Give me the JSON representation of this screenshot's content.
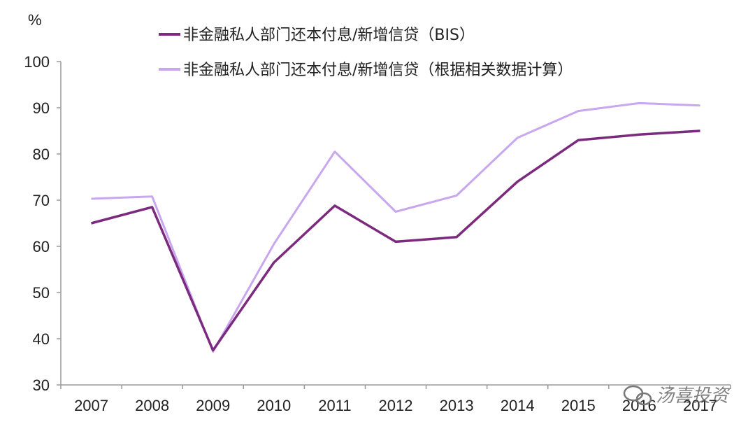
{
  "chart_data": {
    "type": "line",
    "ylabel": "%",
    "ylim": [
      30,
      100
    ],
    "yticks": [
      30,
      40,
      50,
      60,
      70,
      80,
      90,
      100
    ],
    "categories": [
      "2007",
      "2008",
      "2009",
      "2010",
      "2011",
      "2012",
      "2013",
      "2014",
      "2015",
      "2016",
      "2017"
    ],
    "series": [
      {
        "name": "非金融私人部门还本付息/新增信贷（BIS）",
        "color": "#7b2a7e",
        "values": [
          65,
          68.5,
          37.5,
          56.5,
          68.8,
          61,
          62,
          74,
          83,
          84.2,
          85
        ]
      },
      {
        "name": "非金融私人部门还本付息/新增信贷（根据相关数据计算）",
        "color": "#c9a7ee",
        "values": [
          70.3,
          70.8,
          37.2,
          60.5,
          80.5,
          67.5,
          71,
          83.5,
          89.3,
          91,
          90.5
        ]
      }
    ],
    "legend": "top",
    "grid": false
  },
  "watermark": {
    "text": "汤喜投资",
    "icon": "wechat-icon"
  }
}
